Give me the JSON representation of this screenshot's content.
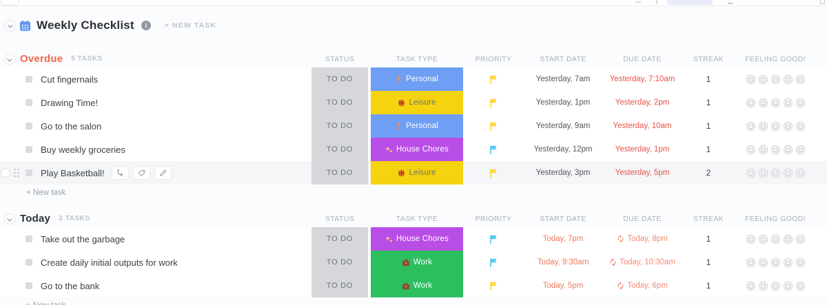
{
  "header": {
    "title": "Weekly Checklist",
    "new_task_label": "+ NEW TASK"
  },
  "labels": {
    "new_task_row": "+ New task"
  },
  "columns": [
    "STATUS",
    "TASK TYPE",
    "PRIORITY",
    "START DATE",
    "DUE DATE",
    "STREAK",
    "FEELING GOOD!"
  ],
  "task_types": {
    "Personal": {
      "bg": "#6f9ff4",
      "text": "#ffffff",
      "icon": "exclamation-icon"
    },
    "Leisure": {
      "bg": "#f5d30e",
      "text": "#70725f",
      "icon": "basketball-icon"
    },
    "House Chores": {
      "bg": "#b94ee6",
      "text": "#ffffff",
      "icon": "sparkles-icon"
    },
    "Work": {
      "bg": "#2cbf60",
      "text": "#ffffff",
      "icon": "briefcase-icon"
    }
  },
  "priority_colors": {
    "yellow": "#fdd53f",
    "blue": "#57c7f2"
  },
  "date_colors": {
    "past_start": "#54575c",
    "overdue": "#e85348",
    "today_start": "#f1795b",
    "today_due": "#f58a70"
  },
  "feeling_scale_size": 5,
  "groups": [
    {
      "name": "Overdue",
      "color": "#f3654c",
      "count_label": "5 TASKS",
      "tasks": [
        {
          "name": "Cut fingernails",
          "status": "TO DO",
          "type": "Personal",
          "priority": "yellow",
          "start": "Yesterday, 7am",
          "start_style": "past_start",
          "due": "Yesterday, 7:10am",
          "due_style": "overdue",
          "recurring": false,
          "streak": "1",
          "hover": false
        },
        {
          "name": "Drawing Time!",
          "status": "TO DO",
          "type": "Leisure",
          "priority": "yellow",
          "start": "Yesterday, 1pm",
          "start_style": "past_start",
          "due": "Yesterday, 2pm",
          "due_style": "overdue",
          "recurring": false,
          "streak": "1",
          "hover": false
        },
        {
          "name": "Go to the salon",
          "status": "TO DO",
          "type": "Personal",
          "priority": "yellow",
          "start": "Yesterday, 9am",
          "start_style": "past_start",
          "due": "Yesterday, 10am",
          "due_style": "overdue",
          "recurring": false,
          "streak": "1",
          "hover": false
        },
        {
          "name": "Buy weekly groceries",
          "status": "TO DO",
          "type": "House Chores",
          "priority": "blue",
          "start": "Yesterday, 12pm",
          "start_style": "past_start",
          "due": "Yesterday, 1pm",
          "due_style": "overdue",
          "recurring": false,
          "streak": "1",
          "hover": false
        },
        {
          "name": "Play Basketball!",
          "status": "TO DO",
          "type": "Leisure",
          "priority": "yellow",
          "start": "Yesterday, 3pm",
          "start_style": "past_start",
          "due": "Yesterday, 5pm",
          "due_style": "overdue",
          "recurring": false,
          "streak": "2",
          "hover": true
        }
      ]
    },
    {
      "name": "Today",
      "color": "#2b2f36",
      "count_label": "3 TASKS",
      "tasks": [
        {
          "name": "Take out the garbage",
          "status": "TO DO",
          "type": "House Chores",
          "priority": "blue",
          "start": "Today, 7pm",
          "start_style": "today_start",
          "due": "Today, 8pm",
          "due_style": "today_due",
          "recurring": true,
          "streak": "1",
          "hover": false
        },
        {
          "name": "Create daily initial outputs for work",
          "status": "TO DO",
          "type": "Work",
          "priority": "blue",
          "start": "Today, 9:30am",
          "start_style": "today_start",
          "due": "Today, 10:30am",
          "due_style": "today_due",
          "recurring": true,
          "streak": "1",
          "hover": false
        },
        {
          "name": "Go to the bank",
          "status": "TO DO",
          "type": "Work",
          "priority": "yellow",
          "start": "Today, 5pm",
          "start_style": "today_start",
          "due": "Today, 6pm",
          "due_style": "today_due",
          "recurring": true,
          "streak": "1",
          "hover": false
        }
      ]
    }
  ]
}
